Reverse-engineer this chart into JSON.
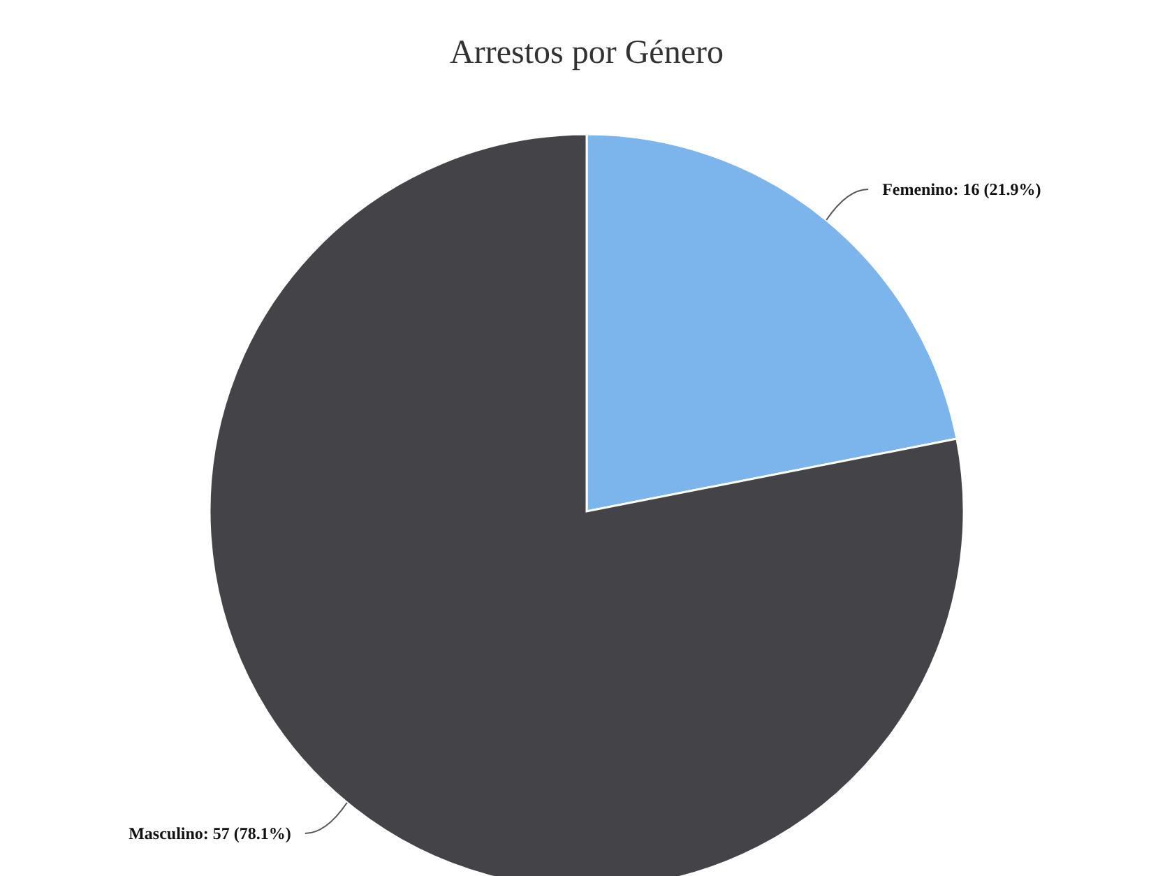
{
  "chart_data": {
    "type": "pie",
    "title": "Arrestos por Género",
    "categories": [
      "Femenino",
      "Masculino"
    ],
    "values": [
      16,
      57
    ],
    "colors": [
      "#7cb5ec",
      "#434348"
    ],
    "value_labels": [
      "16 (21.9%)",
      "57 (78.1%)"
    ]
  }
}
